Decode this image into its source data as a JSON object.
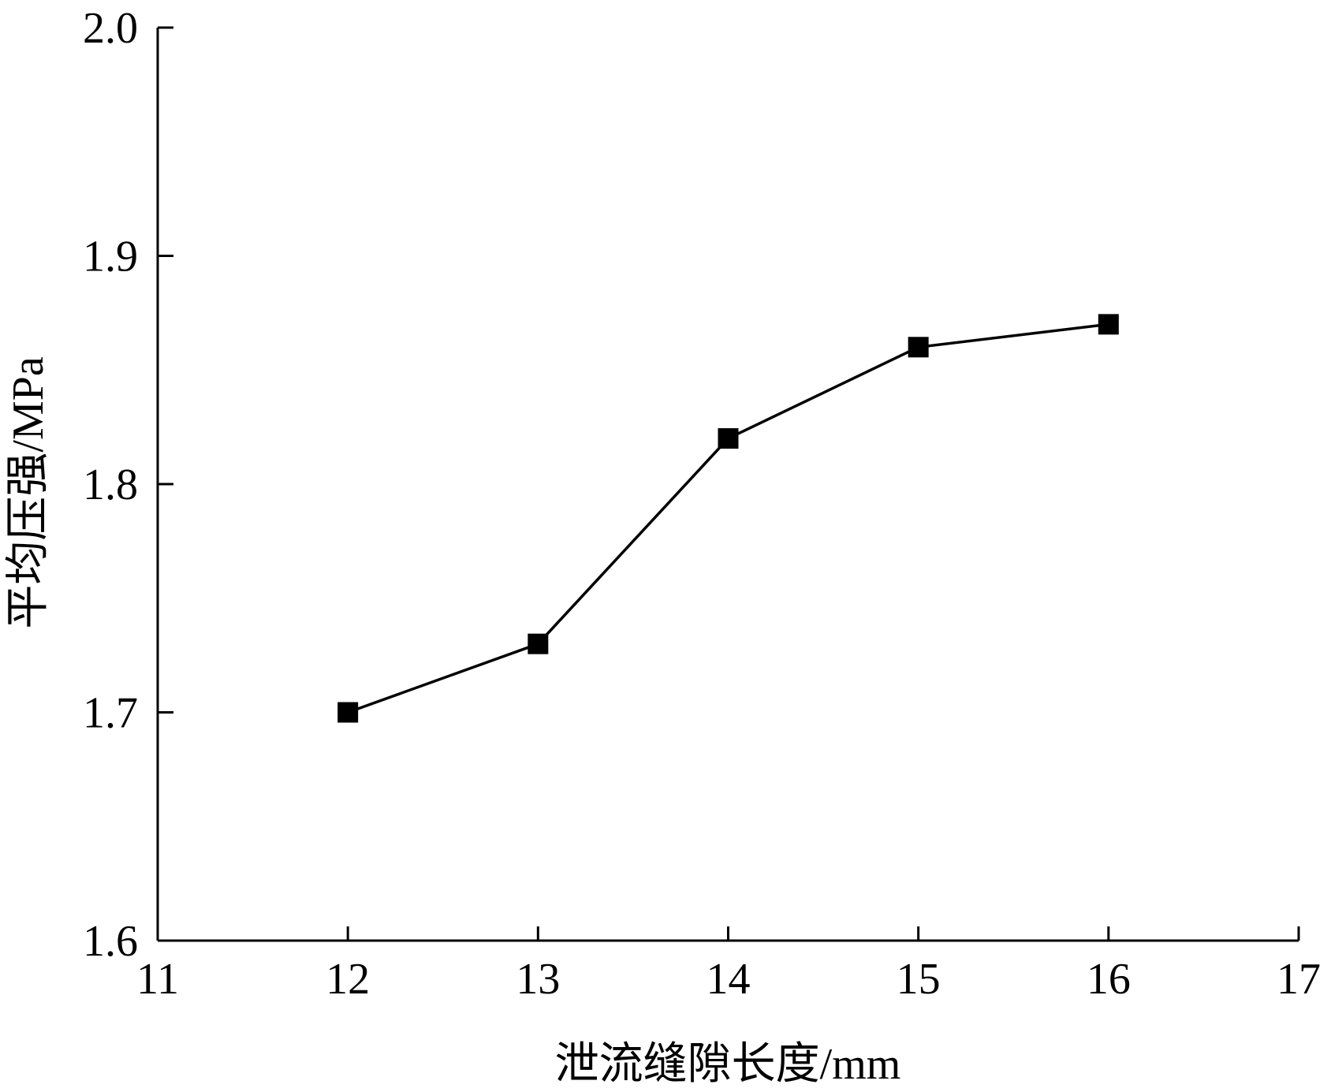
{
  "chart_data": {
    "type": "line",
    "xlabel": "泄流缝隙长度/mm",
    "ylabel": "平均压强/MPa",
    "xlim": [
      11,
      17
    ],
    "ylim": [
      1.6,
      2.0
    ],
    "x_ticks": [
      "11",
      "12",
      "13",
      "14",
      "15",
      "16",
      "17"
    ],
    "y_ticks": [
      "1.6",
      "1.7",
      "1.8",
      "1.9",
      "2.0"
    ],
    "grid": false,
    "legend": "none",
    "series": [
      {
        "marker": "square",
        "color": "#000000",
        "x": [
          12,
          13,
          14,
          15,
          16
        ],
        "y": [
          1.7,
          1.73,
          1.82,
          1.86,
          1.87
        ]
      }
    ]
  }
}
